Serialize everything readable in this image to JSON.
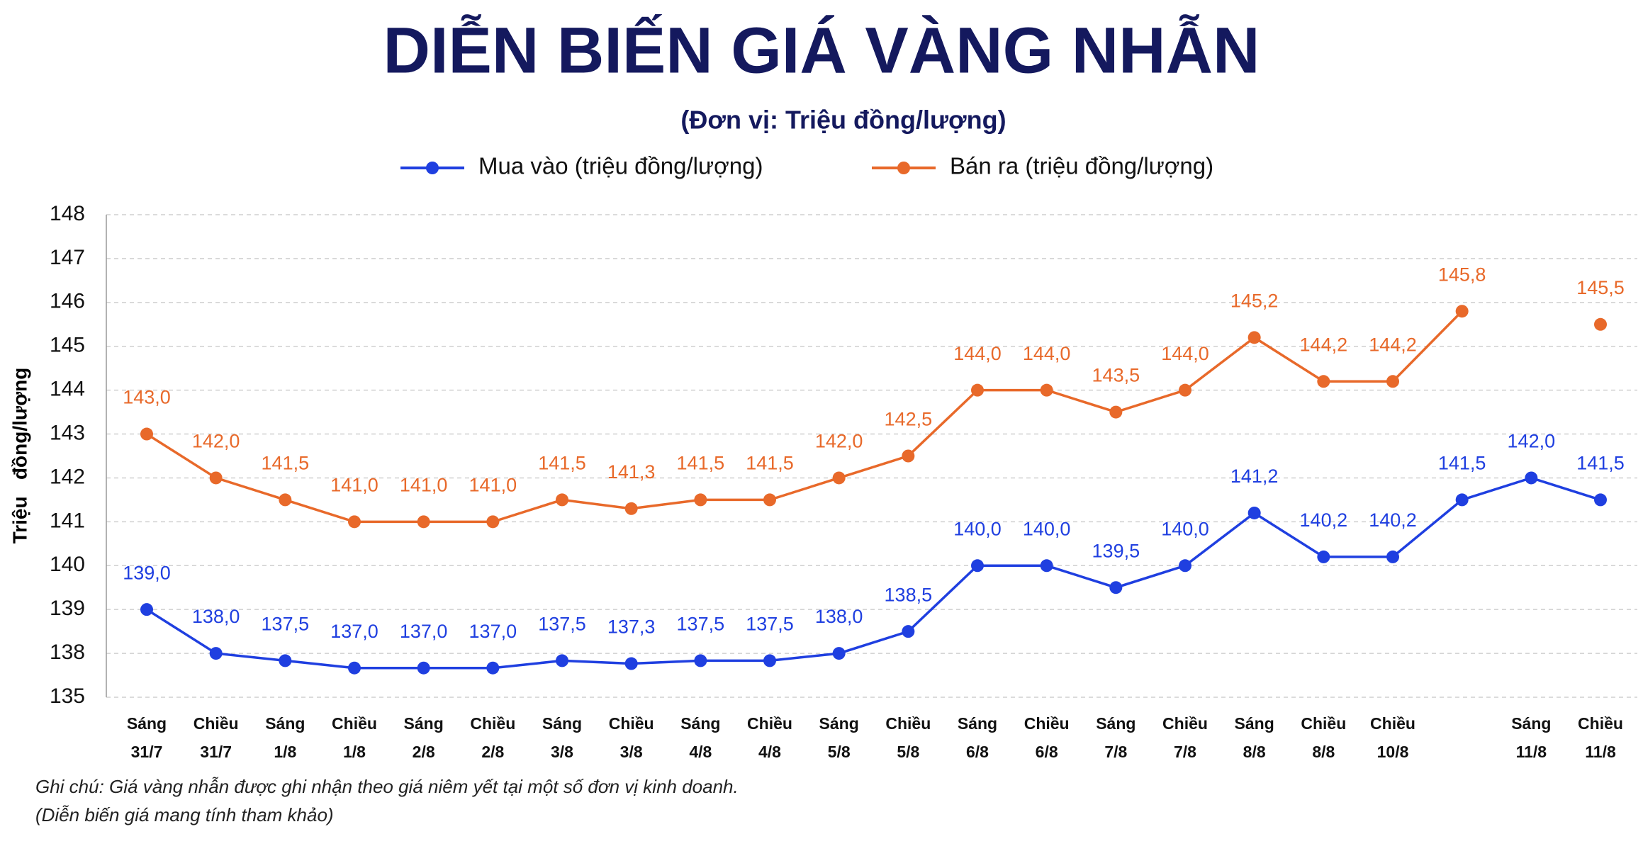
{
  "chart_data": {
    "type": "line",
    "title": "DIỄN BIẾN GIÁ VÀNG NHẪN",
    "subtitle": "(Đơn vị: Triệu đồng/lượng)",
    "y_label": "Triệu   đồng/lượng",
    "notes": [
      "Ghi chú: Giá vàng nhẫn được ghi nhận theo giá niêm yết tại một số đơn vị kinh doanh.",
      "(Diễn biến giá mang tính tham khảo)"
    ],
    "categories": [
      [
        "Sáng",
        "31/7"
      ],
      [
        "Chiều",
        "31/7"
      ],
      [
        "Sáng",
        "1/8"
      ],
      [
        "Chiều",
        "1/8"
      ],
      [
        "Sáng",
        "2/8"
      ],
      [
        "Chiều",
        "2/8"
      ],
      [
        "Sáng",
        "3/8"
      ],
      [
        "Chiều",
        "3/8"
      ],
      [
        "Sáng",
        "4/8"
      ],
      [
        "Chiều",
        "4/8"
      ],
      [
        "Sáng",
        "5/8"
      ],
      [
        "Chiều",
        "5/8"
      ],
      [
        "Sáng",
        "6/8"
      ],
      [
        "Chiều",
        "6/8"
      ],
      [
        "Sáng",
        "7/8"
      ],
      [
        "Chiều",
        "7/8"
      ],
      [
        "Sáng",
        "8/8"
      ],
      [
        "Chiều",
        "8/8"
      ],
      [
        "Chiều",
        "10/8"
      ],
      null,
      [
        "Sáng",
        "11/8"
      ],
      [
        "Chiều",
        "11/8"
      ]
    ],
    "series": [
      {
        "name": "Mua vào (triệu đồng/lượng)",
        "color": "#1f3fe0",
        "values": [
          139.0,
          138.0,
          137.5,
          137.0,
          137.0,
          137.0,
          137.5,
          137.3,
          137.5,
          137.5,
          138.0,
          138.5,
          140.0,
          140.0,
          139.5,
          140.0,
          141.2,
          140.2,
          140.2,
          141.5,
          142.0,
          141.5
        ],
        "value_labels": [
          "139,0",
          "138,0",
          "137,5",
          "137,0",
          "137,0",
          "137,0",
          "137,5",
          "137,3",
          "137,5",
          "137,5",
          "138,0",
          "138,5",
          "140,0",
          "140,0",
          "139,5",
          "140,0",
          "141,2",
          "140,2",
          "140,2",
          "141,5",
          "142,0",
          "141,5"
        ]
      },
      {
        "name": "Bán ra (triệu đồng/lượng)",
        "color": "#e8692a",
        "values": [
          143.0,
          142.0,
          141.5,
          141.0,
          141.0,
          141.0,
          141.5,
          141.3,
          141.5,
          141.5,
          142.0,
          142.5,
          144.0,
          144.0,
          143.5,
          144.0,
          145.2,
          144.2,
          144.2,
          145.8,
          null,
          145.5
        ],
        "value_labels": [
          "143,0",
          "142,0",
          "141,5",
          "141,0",
          "141,0",
          "141,0",
          "141,5",
          "141,3",
          "141,5",
          "141,5",
          "142,0",
          "142,5",
          "144,0",
          "144,0",
          "143,5",
          "144,0",
          "145,2",
          "144,2",
          "144,2",
          "145,8",
          null,
          "145,5"
        ]
      }
    ],
    "ylim": [
      135,
      148
    ],
    "yticks": [
      135,
      138,
      139,
      140,
      141,
      142,
      143,
      144,
      145,
      146,
      147,
      148
    ],
    "grid": true
  }
}
